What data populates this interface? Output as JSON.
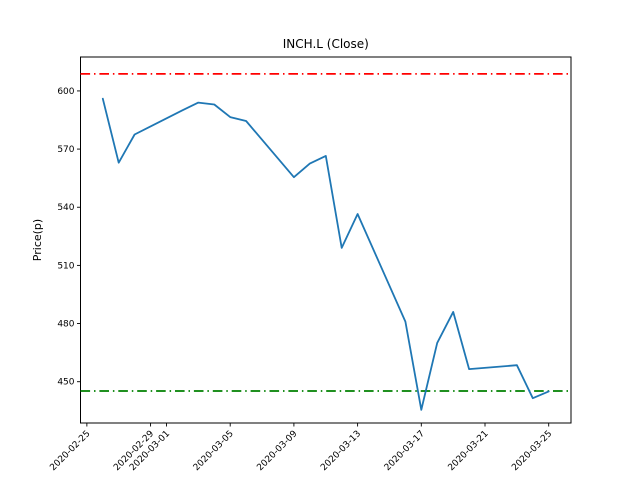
{
  "chart_data": {
    "type": "line",
    "title": "INCH.L (Close)",
    "xlabel": "",
    "ylabel": "Price(p)",
    "grid": false,
    "legend": "none",
    "background_color": "#ffffff",
    "frame_color": "#000000",
    "ylim": [
      428.7,
      617.5
    ],
    "xlim_days": [
      -0.4,
      30.4
    ],
    "yticks": [
      {
        "value": 450,
        "label": "450"
      },
      {
        "value": 480,
        "label": "480"
      },
      {
        "value": 510,
        "label": "510"
      },
      {
        "value": 540,
        "label": "540"
      },
      {
        "value": 570,
        "label": "570"
      },
      {
        "value": 600,
        "label": "600"
      }
    ],
    "xticks": [
      {
        "day": 0,
        "label": "2020-02-25"
      },
      {
        "day": 4,
        "label": "2020-02-29"
      },
      {
        "day": 5,
        "label": "2020-03-01"
      },
      {
        "day": 9,
        "label": "2020-03-05"
      },
      {
        "day": 13,
        "label": "2020-03-09"
      },
      {
        "day": 17,
        "label": "2020-03-13"
      },
      {
        "day": 21,
        "label": "2020-03-17"
      },
      {
        "day": 25,
        "label": "2020-03-21"
      },
      {
        "day": 29,
        "label": "2020-03-25"
      }
    ],
    "series": [
      {
        "name": "Close",
        "color": "#1f77b4",
        "style": "solid",
        "points": [
          {
            "date": "2020-02-26",
            "day": 1,
            "value": 596
          },
          {
            "date": "2020-02-27",
            "day": 2,
            "value": 563
          },
          {
            "date": "2020-02-28",
            "day": 3,
            "value": 577.5
          },
          {
            "date": "2020-03-02",
            "day": 6,
            "value": 590
          },
          {
            "date": "2020-03-03",
            "day": 7,
            "value": 594
          },
          {
            "date": "2020-03-04",
            "day": 8,
            "value": 593
          },
          {
            "date": "2020-03-05",
            "day": 9,
            "value": 586.5
          },
          {
            "date": "2020-03-06",
            "day": 10,
            "value": 584.5
          },
          {
            "date": "2020-03-09",
            "day": 13,
            "value": 555.5
          },
          {
            "date": "2020-03-10",
            "day": 14,
            "value": 562.5
          },
          {
            "date": "2020-03-11",
            "day": 15,
            "value": 566.5
          },
          {
            "date": "2020-03-12",
            "day": 16,
            "value": 519
          },
          {
            "date": "2020-03-13",
            "day": 17,
            "value": 536.5
          },
          {
            "date": "2020-03-16",
            "day": 20,
            "value": 481
          },
          {
            "date": "2020-03-17",
            "day": 21,
            "value": 435.5
          },
          {
            "date": "2020-03-18",
            "day": 22,
            "value": 470
          },
          {
            "date": "2020-03-19",
            "day": 23,
            "value": 486
          },
          {
            "date": "2020-03-20",
            "day": 24,
            "value": 456.5
          },
          {
            "date": "2020-03-23",
            "day": 27,
            "value": 458.5
          },
          {
            "date": "2020-03-24",
            "day": 28,
            "value": 441.5
          },
          {
            "date": "2020-03-25",
            "day": 29,
            "value": 445
          }
        ]
      }
    ],
    "hlines": [
      {
        "name": "upper-threshold",
        "value": 608.8,
        "color": "#ff0000",
        "style": "dashdot"
      },
      {
        "name": "lower-threshold",
        "value": 445.2,
        "color": "#008000",
        "style": "dashdot"
      }
    ]
  }
}
